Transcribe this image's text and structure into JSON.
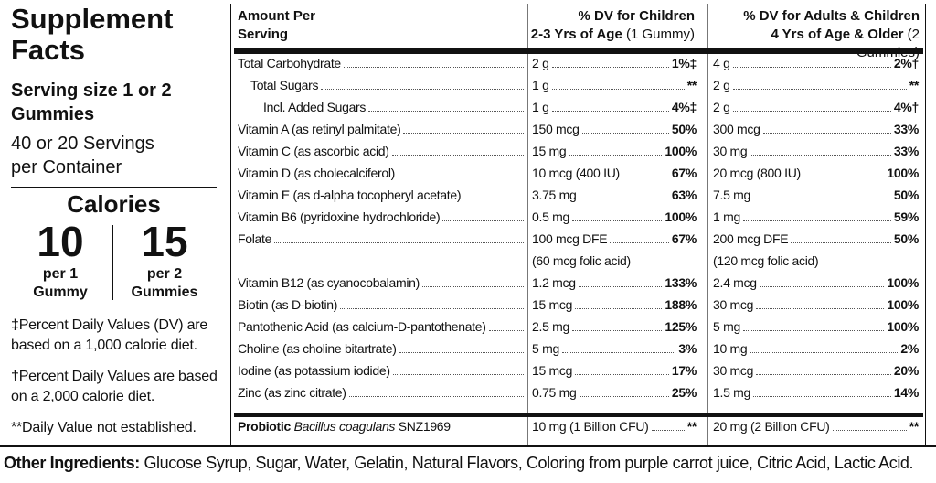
{
  "header": {
    "title": "Supplement Facts",
    "serving_size": "Serving size 1 or 2 Gummies",
    "servings": "40 or 20 Servings per Container",
    "calories": {
      "label": "Calories",
      "items": [
        {
          "amount": "10",
          "label": "per 1 Gummy"
        },
        {
          "amount": "15",
          "label": "per 2 Gummies"
        }
      ]
    },
    "footnotes": [
      "‡Percent Daily Values (DV) are based on a 1,000 calorie diet.",
      "†Percent Daily Values are based on a 2,000 calorie diet.",
      "**Daily Value not established."
    ]
  },
  "table": {
    "columns": {
      "amount": "Amount Per Serving",
      "children": {
        "title": "% DV for Children",
        "age": "2-3 Yrs of Age",
        "qty": "(1 Gummy)"
      },
      "adults": {
        "title": "% DV for Adults & Children",
        "age": "4 Yrs of Age & Older",
        "qty": "(2 Gummies)"
      }
    },
    "rows": [
      {
        "name": "Total Carbohydrate",
        "child_amount": "2 g",
        "child_dv": "1%‡",
        "adult_amount": "4 g",
        "adult_dv": "2%†",
        "children": [
          {
            "name": "Total Sugars",
            "child_amount": "1 g",
            "child_dv": "**",
            "adult_amount": "2 g",
            "adult_dv": "**",
            "children": [
              {
                "name": "Incl. Added Sugars",
                "child_amount": "1 g",
                "child_dv": "4%‡",
                "adult_amount": "2 g",
                "adult_dv": "4%†"
              }
            ]
          }
        ]
      },
      {
        "name": "Vitamin A (as retinyl palmitate)",
        "child_amount": "150 mcg",
        "child_dv": "50%",
        "adult_amount": "300 mcg",
        "adult_dv": "33%"
      },
      {
        "name": "Vitamin C (as ascorbic acid)",
        "child_amount": "15 mg",
        "child_dv": "100%",
        "adult_amount": "30 mg",
        "adult_dv": "33%"
      },
      {
        "name": "Vitamin D (as cholecalciferol)",
        "child_amount": "10 mcg (400 IU)",
        "child_dv": "67%",
        "adult_amount": "20 mcg (800 IU)",
        "adult_dv": "100%"
      },
      {
        "name": "Vitamin E (as d-alpha tocopheryl acetate)",
        "child_amount": "3.75 mg",
        "child_dv": "63%",
        "adult_amount": "7.5 mg",
        "adult_dv": "50%"
      },
      {
        "name": "Vitamin B6 (pyridoxine hydrochloride)",
        "child_amount": "0.5 mg",
        "child_dv": "100%",
        "adult_amount": "1 mg",
        "adult_dv": "59%"
      },
      {
        "name": "Folate",
        "child_amount": "100 mcg DFE",
        "child_note": "(60 mcg folic acid)",
        "child_dv": "67%",
        "adult_amount": "200 mcg DFE",
        "adult_note": "(120 mcg folic acid)",
        "adult_dv": "50%"
      },
      {
        "name": "Vitamin B12 (as cyanocobalamin)",
        "child_amount": "1.2 mcg",
        "child_dv": "133%",
        "adult_amount": "2.4 mcg",
        "adult_dv": "100%"
      },
      {
        "name": "Biotin (as D-biotin)",
        "child_amount": "15 mcg",
        "child_dv": "188%",
        "adult_amount": "30 mcg",
        "adult_dv": "100%"
      },
      {
        "name": "Pantothenic Acid (as calcium-D-pantothenate)",
        "child_amount": "2.5 mg",
        "child_dv": "125%",
        "adult_amount": "5 mg",
        "adult_dv": "100%"
      },
      {
        "name": "Choline (as choline bitartrate)",
        "child_amount": "5 mg",
        "child_dv": "3%",
        "adult_amount": "10 mg",
        "adult_dv": "2%"
      },
      {
        "name": "Iodine (as potassium iodide)",
        "child_amount": "15 mcg",
        "child_dv": "17%",
        "adult_amount": "30 mcg",
        "adult_dv": "20%"
      },
      {
        "name": "Zinc (as zinc citrate)",
        "child_amount": "0.75 mg",
        "child_dv": "25%",
        "adult_amount": "1.5 mg",
        "adult_dv": "14%"
      }
    ],
    "probiotic": {
      "label": "Probiotic",
      "species": "Bacillus coagulans",
      "strain": "SNZ1969",
      "child_amount": "10 mg (1 Billion CFU)",
      "child_dv": "**",
      "adult_amount": "20 mg (2 Billion CFU)",
      "adult_dv": "**"
    }
  },
  "other_ingredients": {
    "label": "Other Ingredients:",
    "text": "Glucose Syrup, Sugar, Water, Gelatin, Natural Flavors, Coloring from purple carrot juice, Citric Acid, Lactic Acid."
  }
}
